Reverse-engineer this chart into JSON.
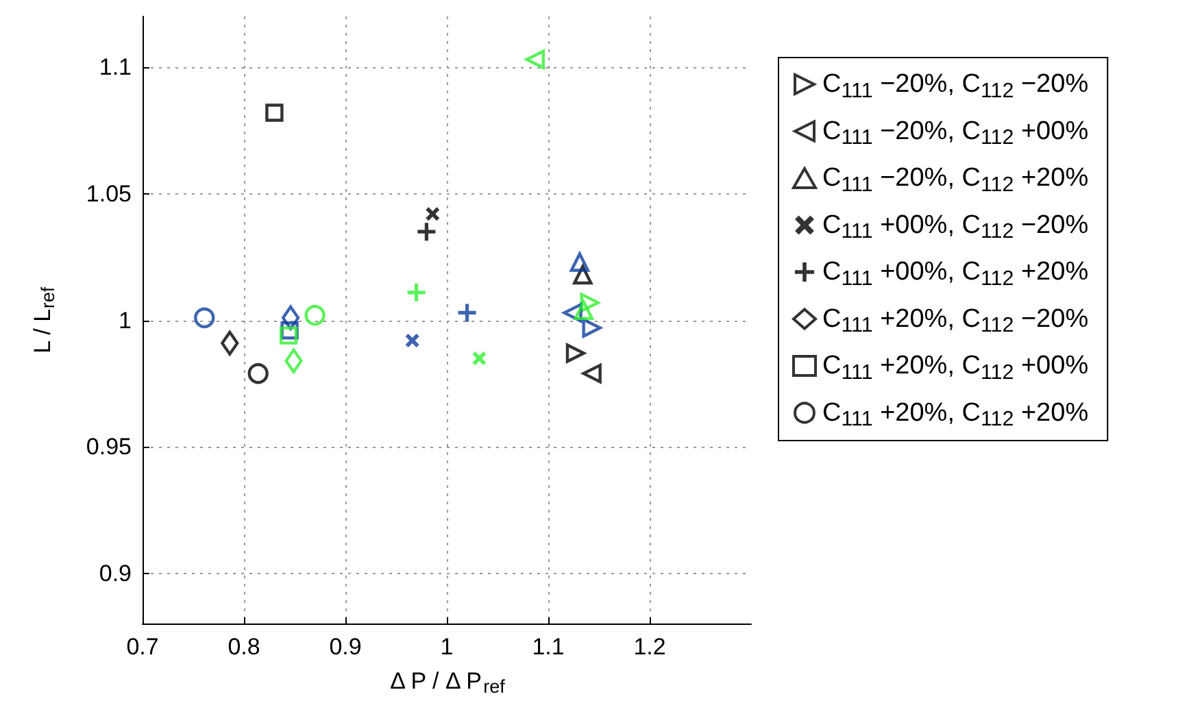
{
  "chart_data": {
    "type": "scatter",
    "xlabel": "Δ P / Δ P$_{ref}$",
    "ylabel": "L / L$_{ref}$",
    "xlim": [
      0.7,
      1.3
    ],
    "xticks": [
      0.7,
      0.8,
      0.9,
      1,
      1.1,
      1.2
    ],
    "ylim": [
      0.88,
      1.12
    ],
    "yticks": [
      0.9,
      0.95,
      1,
      1.05,
      1.1
    ],
    "grid": true,
    "legend": "right",
    "series": [
      {
        "name": "C$_{111}$ −20%, C$_{112}$ −20%",
        "marker": "triangle-right",
        "color": "#000000",
        "x": [
          1.127,
          1.143,
          1.141
        ],
        "values": [
          0.987,
          0.997,
          1.007
        ],
        "colors": [
          "#000000",
          "#0b3d9c",
          "#33ee33"
        ]
      },
      {
        "name": "C$_{111}$ −20%, C$_{112}$ +00%",
        "marker": "triangle-left",
        "color": "#000000",
        "x": [
          1.143,
          1.124,
          1.087
        ],
        "values": [
          0.979,
          1.003,
          1.103
        ],
        "colors": [
          "#000000",
          "#0b3d9c",
          "#33ee33"
        ]
      },
      {
        "name": "C$_{111}$ −20%, C$_{112}$ +20%",
        "marker": "triangle",
        "color": "#000000",
        "x": [
          1.134,
          1.131,
          1.135
        ],
        "values": [
          1.018,
          1.023,
          1.004
        ],
        "colors": [
          "#000000",
          "#0b3d9c",
          "#33ee33"
        ]
      },
      {
        "name": "C$_{111}$ +00%, C$_{112}$ −20%",
        "marker": "x",
        "color": "#000000",
        "x": [
          0.986,
          0.966,
          1.032
        ],
        "values": [
          1.042,
          0.992,
          0.985
        ],
        "colors": [
          "#000000",
          "#0b3d9c",
          "#33ee33"
        ]
      },
      {
        "name": "C$_{111}$ +00%, C$_{112}$ +20%",
        "marker": "plus",
        "color": "#000000",
        "x": [
          0.98,
          1.02,
          0.97
        ],
        "values": [
          1.035,
          1.003,
          1.011
        ],
        "colors": [
          "#000000",
          "#0b3d9c",
          "#33ee33"
        ]
      },
      {
        "name": "C$_{111}$ +20%, C$_{112}$ −20%",
        "marker": "diamond",
        "color": "#000000",
        "x": [
          0.786,
          0.846,
          0.849
        ],
        "values": [
          0.991,
          1.001,
          0.984
        ],
        "colors": [
          "#000000",
          "#0b3d9c",
          "#33ee33"
        ]
      },
      {
        "name": "C$_{111}$ +20%, C$_{112}$ +00%",
        "marker": "square",
        "color": "#000000",
        "x": [
          0.83,
          0.845,
          0.844
        ],
        "values": [
          1.082,
          0.996,
          0.994
        ],
        "colors": [
          "#000000",
          "#0b3d9c",
          "#33ee33"
        ]
      },
      {
        "name": "C$_{111}$ +20%, C$_{112}$ +20%",
        "marker": "circle",
        "color": "#000000",
        "x": [
          0.814,
          0.761,
          0.87
        ],
        "values": [
          0.979,
          1.001,
          1.002
        ],
        "colors": [
          "#000000",
          "#0b3d9c",
          "#33ee33"
        ]
      }
    ]
  }
}
